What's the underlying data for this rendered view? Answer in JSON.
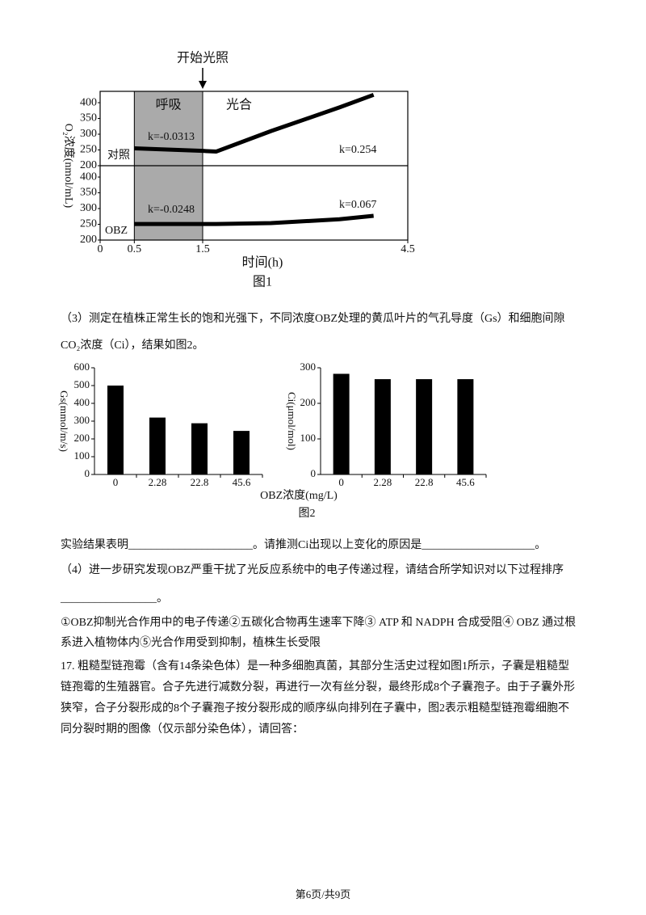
{
  "figure1": {
    "type": "line",
    "annotation": "开始光照",
    "ylabel": "O₂浓度(nmol/mL)",
    "xlabel": "时间(h)",
    "caption": "图1",
    "phases": [
      "呼吸",
      "光合"
    ],
    "shaded_x": [
      0.5,
      1.5
    ],
    "xlim": [
      0,
      4.5
    ],
    "xticks": [
      0,
      0.5,
      1.5,
      4.5
    ],
    "color": "#000000",
    "panels": [
      {
        "name": "对照",
        "ylim": [
          200,
          436
        ],
        "yticks": [
          200,
          250,
          300,
          350,
          400
        ],
        "x": [
          0.5,
          1.5,
          1.7,
          2.5,
          3.5,
          4.0
        ],
        "values": [
          255,
          247,
          245,
          310,
          385,
          425
        ],
        "k_labels": [
          "k=-0.0313",
          "k=0.254"
        ]
      },
      {
        "name": "OBZ",
        "ylim": [
          200,
          436
        ],
        "yticks": [
          200,
          250,
          300,
          350,
          400
        ],
        "x": [
          0.5,
          1.5,
          1.7,
          2.5,
          3.5,
          4.0
        ],
        "values": [
          251,
          251,
          251,
          254,
          266,
          277
        ],
        "k_labels": [
          "k=-0.0248",
          "k=0.067"
        ]
      }
    ]
  },
  "figure2": {
    "xlabel": "OBZ浓度(mg/L)",
    "caption": "图2",
    "charts": [
      {
        "type": "bar",
        "ylabel": "Gs(mmol/m/s)",
        "categories": [
          "0",
          "2.28",
          "22.8",
          "45.6"
        ],
        "values": [
          500,
          320,
          288,
          245
        ],
        "ylim": [
          0,
          600
        ],
        "yticks": [
          0,
          100,
          200,
          300,
          400,
          500,
          600
        ],
        "color": "#000000"
      },
      {
        "type": "bar",
        "ylabel": "Ci(μmol/mol)",
        "categories": [
          "0",
          "2.28",
          "22.8",
          "45.6"
        ],
        "values": [
          283,
          268,
          268,
          268
        ],
        "ylim": [
          0,
          300
        ],
        "yticks": [
          0,
          100,
          200,
          300
        ],
        "color": "#000000"
      }
    ]
  },
  "body": [
    "（3）测定在植株正常生长的饱和光强下，不同浓度OBZ处理的黄瓜叶片的气孔导度（Gs）和细胞间隙",
    "CO₂浓度（Ci），结果如图2。",
    "实验结果表明______________________。请推测Ci出现以上变化的原因是____________________。",
    "（4）进一步研究发现OBZ严重干扰了光反应系统中的电子传递过程，请结合所学知识对以下过程排序",
    "_________________。",
    "①OBZ抑制光合作用中的电子传递②五碳化合物再生速率下降③ ATP 和 NADPH 合成受阻④ OBZ 通过根",
    "系进入植物体内⑤光合作用受到抑制，植株生长受限",
    "17. 粗糙型链孢霉（含有14条染色体）是一种多细胞真菌，其部分生活史过程如图1所示，子囊是粗糙型",
    "链孢霉的生殖器官。合子先进行减数分裂，再进行一次有丝分裂，最终形成8个子囊孢子。由于子囊外形",
    "狭窄，合子分裂形成的8个子囊孢子按分裂形成的顺序纵向排列在子囊中，图2表示粗糙型链孢霉细胞不",
    "同分裂时期的图像（仅示部分染色体），请回答："
  ],
  "footer": "第6页/共9页"
}
